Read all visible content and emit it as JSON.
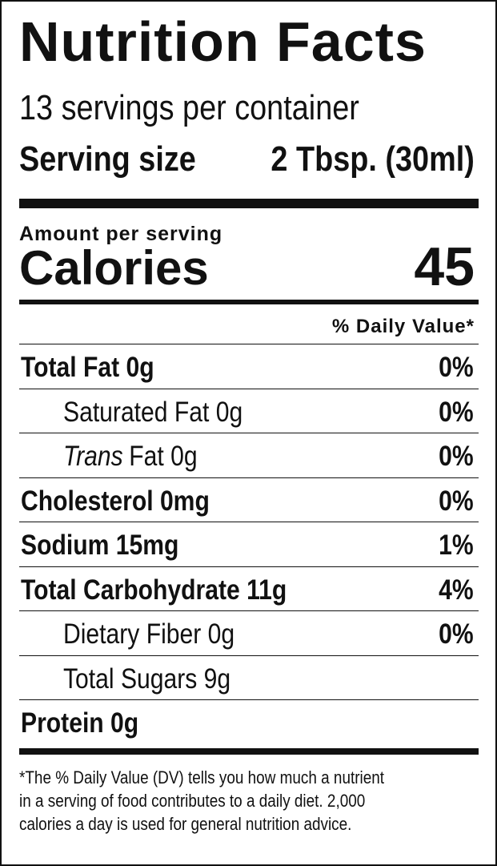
{
  "header": {
    "title": "Nutrition Facts",
    "servings": "13 servings per container",
    "serving_size_label": "Serving size",
    "serving_size_value": "2 Tbsp. (30ml)"
  },
  "calories": {
    "amount_label": "Amount per serving",
    "label": "Calories",
    "value": "45"
  },
  "dv_header": "% Daily Value*",
  "rows": [
    {
      "name": "Total Fat 0g",
      "dv": "0%",
      "bold": true,
      "indent": false
    },
    {
      "name": "Saturated Fat 0g",
      "dv": "0%",
      "bold": false,
      "indent": true
    },
    {
      "name_italic": "Trans",
      "name": "Fat 0g",
      "dv": "0%",
      "bold": false,
      "indent": true
    },
    {
      "name": "Cholesterol 0mg",
      "dv": "0%",
      "bold": true,
      "indent": false
    },
    {
      "name": "Sodium 15mg",
      "dv": "1%",
      "bold": true,
      "indent": false
    },
    {
      "name": "Total Carbohydrate 11g",
      "dv": "4%",
      "bold": true,
      "indent": false
    },
    {
      "name": "Dietary Fiber 0g",
      "dv": "0%",
      "bold": false,
      "indent": true
    },
    {
      "name": "Total Sugars 9g",
      "bold": false,
      "indent": true
    },
    {
      "name": "Protein 0g",
      "bold": true,
      "indent": false
    }
  ],
  "footnote": [
    "*The % Daily Value (DV) tells you how much a nutrient",
    "in a serving of food contributes to a daily diet. 2,000",
    "calories a day is used for general nutrition advice."
  ]
}
